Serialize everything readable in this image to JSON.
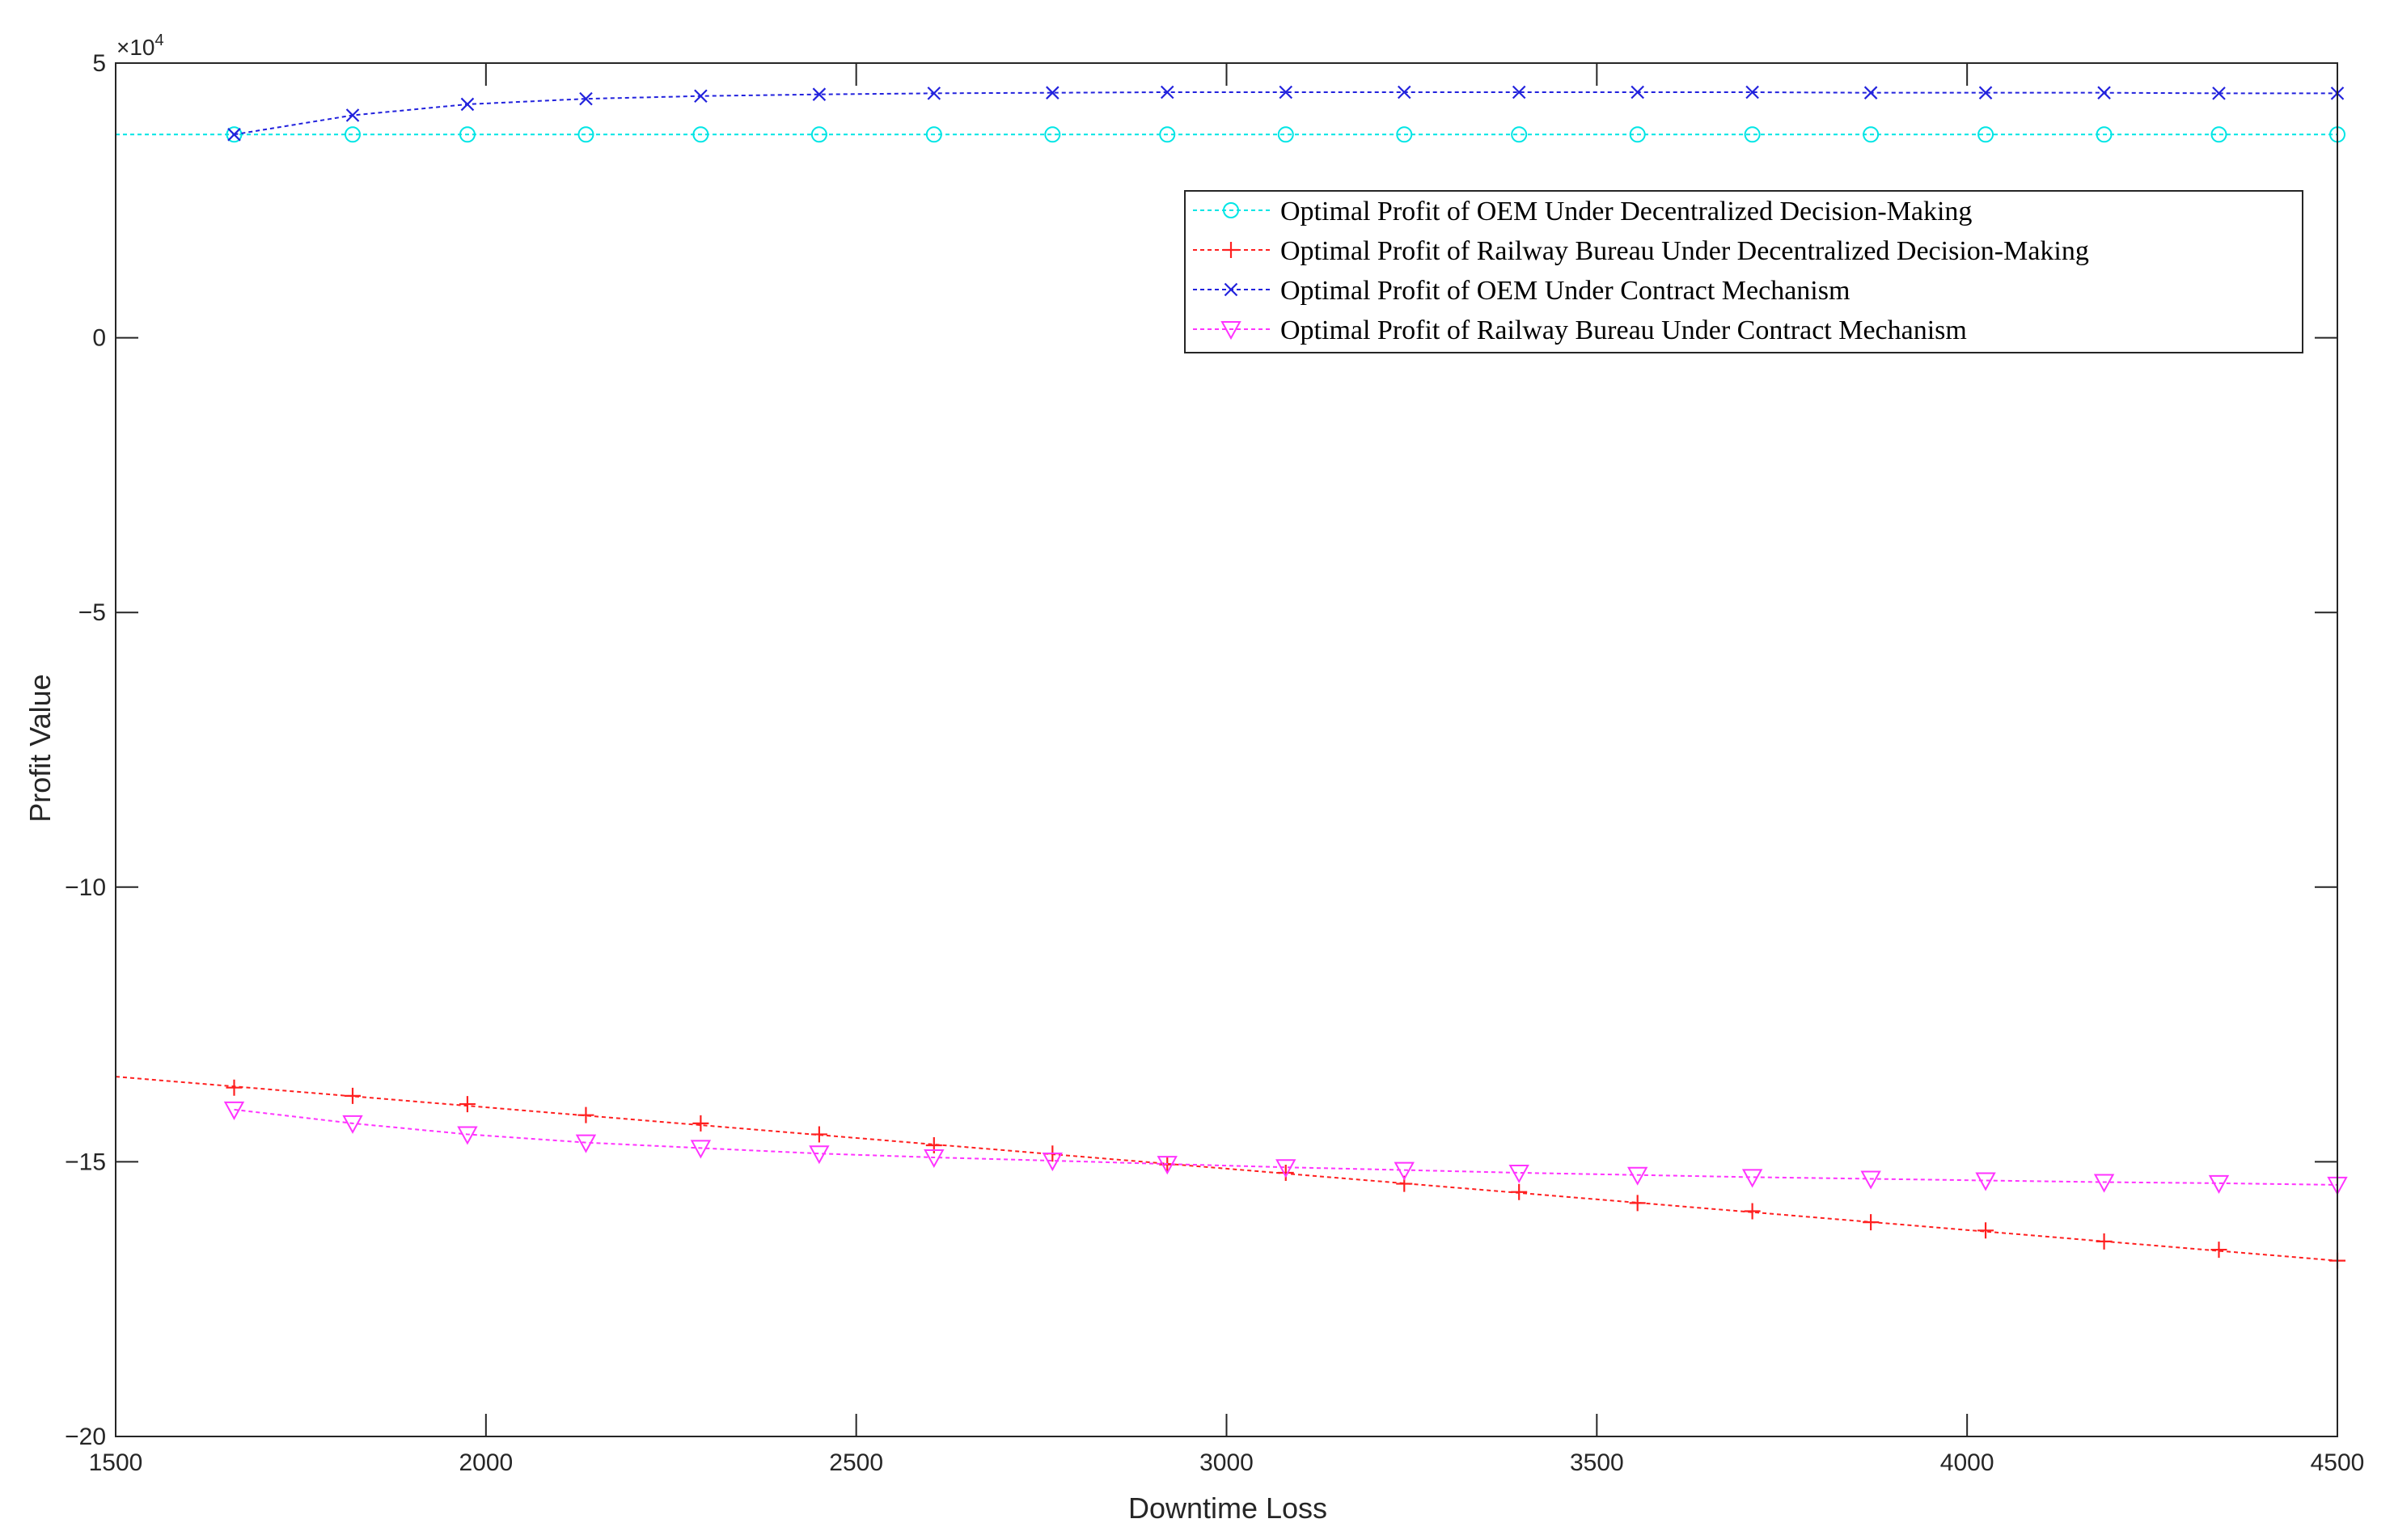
{
  "chart_data": {
    "type": "line",
    "xlabel": "Downtime Loss",
    "ylabel": "Profit Value",
    "y_multiplier": "×10",
    "y_multiplier_exp": "4",
    "xlim": [
      1500,
      4500
    ],
    "ylim": [
      -20,
      5
    ],
    "xticks": [
      1500,
      2000,
      2500,
      3000,
      3500,
      4000,
      4500
    ],
    "xtick_labels": [
      "1500",
      "2000",
      "2500",
      "3000",
      "3500",
      "4000",
      "4500"
    ],
    "yticks": [
      5,
      0,
      -5,
      -10,
      -15,
      -20
    ],
    "ytick_labels": [
      "5",
      "0",
      "−5",
      "−10",
      "−15",
      "−20"
    ],
    "grid": false,
    "legend_position": "top-right",
    "series": [
      {
        "name": "Optimal Profit of OEM Under Decentralized Decision-Making",
        "color": "#00e5e5",
        "marker": "circle",
        "line_x": [
          1500,
          4500
        ],
        "line_y": [
          3.7,
          3.7
        ],
        "x": [
          1660,
          1820,
          1975,
          2135,
          2290,
          2450,
          2605,
          2765,
          2920,
          3080,
          3240,
          3395,
          3555,
          3710,
          3870,
          4025,
          4185,
          4340,
          4500
        ],
        "y": [
          3.7,
          3.7,
          3.7,
          3.7,
          3.7,
          3.7,
          3.7,
          3.7,
          3.7,
          3.7,
          3.7,
          3.7,
          3.7,
          3.7,
          3.7,
          3.7,
          3.7,
          3.7,
          3.7
        ]
      },
      {
        "name": "Optimal Profit of Railway Bureau Under Decentralized Decision-Making",
        "color": "#ff2020",
        "marker": "plus",
        "line_x": [
          1500,
          4500
        ],
        "line_y": [
          -13.45,
          -16.8
        ],
        "x": [
          1660,
          1820,
          1975,
          2135,
          2290,
          2450,
          2605,
          2765,
          2920,
          3080,
          3240,
          3395,
          3555,
          3710,
          3870,
          4025,
          4185,
          4340,
          4500
        ],
        "y": [
          -13.65,
          -13.8,
          -13.95,
          -14.15,
          -14.3,
          -14.5,
          -14.7,
          -14.85,
          -15.05,
          -15.2,
          -15.4,
          -15.55,
          -15.75,
          -15.9,
          -16.1,
          -16.25,
          -16.45,
          -16.6,
          -16.8
        ]
      },
      {
        "name": "Optimal Profit of OEM Under Contract Mechanism",
        "color": "#2222dd",
        "marker": "x",
        "x": [
          1660,
          1820,
          1975,
          2135,
          2290,
          2450,
          2605,
          2765,
          2920,
          3080,
          3240,
          3395,
          3555,
          3710,
          3870,
          4025,
          4185,
          4340,
          4500
        ],
        "y": [
          3.7,
          4.05,
          4.25,
          4.35,
          4.4,
          4.43,
          4.45,
          4.46,
          4.47,
          4.47,
          4.47,
          4.47,
          4.47,
          4.47,
          4.46,
          4.46,
          4.46,
          4.45,
          4.45
        ]
      },
      {
        "name": "Optimal Profit of Railway Bureau Under Contract Mechanism",
        "color": "#ff33ff",
        "marker": "triangle-down",
        "x": [
          1660,
          1820,
          1975,
          2135,
          2290,
          2450,
          2605,
          2765,
          2920,
          3080,
          3240,
          3395,
          3555,
          3710,
          3870,
          4025,
          4185,
          4340,
          4500
        ],
        "y": [
          -14.05,
          -14.3,
          -14.5,
          -14.65,
          -14.75,
          -14.85,
          -14.92,
          -14.98,
          -15.04,
          -15.1,
          -15.15,
          -15.2,
          -15.24,
          -15.28,
          -15.31,
          -15.34,
          -15.37,
          -15.39,
          -15.42
        ]
      }
    ]
  }
}
